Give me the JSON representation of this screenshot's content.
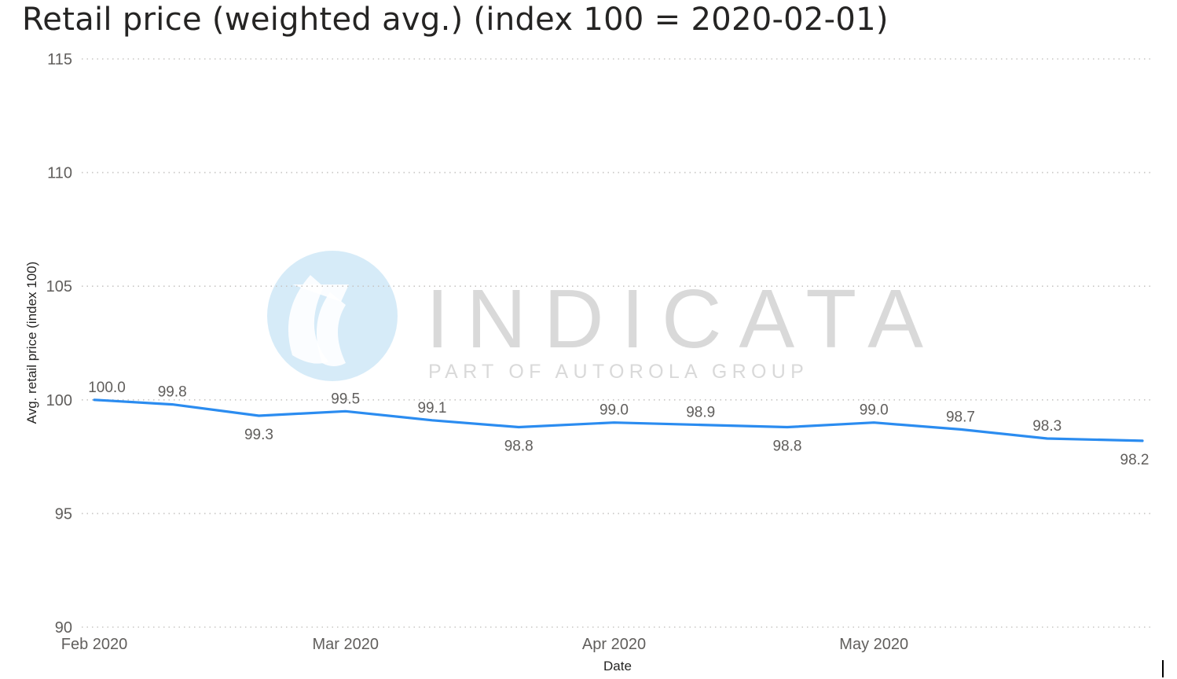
{
  "title": "Retail price (weighted avg.) (index 100 = 2020-02-01)",
  "watermark": {
    "brand": "INDICATA",
    "tagline": "PART OF AUTOROLA GROUP"
  },
  "chart_data": {
    "type": "line",
    "title": "Retail price (weighted avg.) (index 100 = 2020-02-01)",
    "xlabel": "Date",
    "ylabel": "Avg. retail price (index 100)",
    "ylim": [
      90,
      115
    ],
    "yticks": [
      "115",
      "110",
      "105",
      "100",
      "95",
      "90"
    ],
    "xlim": [
      "2020-02-01",
      "2020-06-01"
    ],
    "xticks": [
      {
        "date": "2020-02-01",
        "label": "Feb 2020"
      },
      {
        "date": "2020-03-01",
        "label": "Mar 2020"
      },
      {
        "date": "2020-04-01",
        "label": "Apr 2020"
      },
      {
        "date": "2020-05-01",
        "label": "May 2020"
      }
    ],
    "grid": true,
    "line_color": "#2B8CF0",
    "series": [
      {
        "points": [
          {
            "date": "2020-02-01",
            "value": 100.0,
            "label": "100.0"
          },
          {
            "date": "2020-02-10",
            "value": 99.8,
            "label": "99.8"
          },
          {
            "date": "2020-02-20",
            "value": 99.3,
            "label": "99.3"
          },
          {
            "date": "2020-03-01",
            "value": 99.5,
            "label": "99.5"
          },
          {
            "date": "2020-03-11",
            "value": 99.1,
            "label": "99.1"
          },
          {
            "date": "2020-03-21",
            "value": 98.8,
            "label": "98.8"
          },
          {
            "date": "2020-04-01",
            "value": 99.0,
            "label": "99.0"
          },
          {
            "date": "2020-04-11",
            "value": 98.9,
            "label": "98.9"
          },
          {
            "date": "2020-04-21",
            "value": 98.8,
            "label": "98.8"
          },
          {
            "date": "2020-05-01",
            "value": 99.0,
            "label": "99.0"
          },
          {
            "date": "2020-05-11",
            "value": 98.7,
            "label": "98.7"
          },
          {
            "date": "2020-05-21",
            "value": 98.3,
            "label": "98.3"
          },
          {
            "date": "2020-06-01",
            "value": 98.2,
            "label": "98.2"
          }
        ]
      }
    ]
  }
}
